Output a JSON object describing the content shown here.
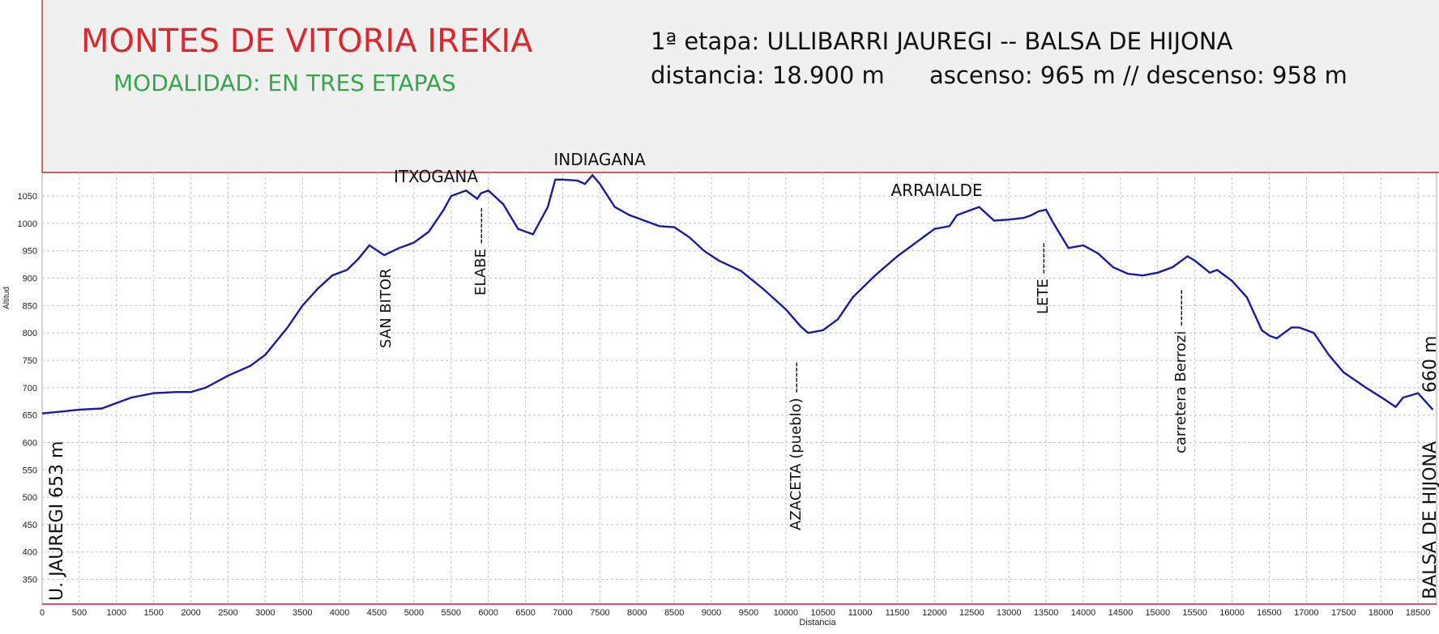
{
  "header": {
    "title": "MONTES DE VITORIA IREKIA",
    "subtitle": "MODALIDAD:  EN TRES ETAPAS",
    "stage": "1ª  etapa: ULLIBARRI JAUREGI -- BALSA DE HIJONA",
    "distance": "distancia: 18.900 m",
    "ascent_descent": "ascenso: 965 m  // descenso: 958 m"
  },
  "chart_data": {
    "type": "area",
    "xlabel": "Distancia",
    "ylabel": "Altitud",
    "xlim": [
      0,
      18750
    ],
    "ylim": [
      305,
      1093
    ],
    "grid": true,
    "x_ticks": [
      0,
      500,
      1000,
      1500,
      2000,
      2500,
      3000,
      3500,
      4000,
      4500,
      5000,
      5500,
      6000,
      6500,
      7000,
      7500,
      8000,
      8500,
      9000,
      9500,
      10000,
      10500,
      11000,
      11500,
      12000,
      12500,
      13000,
      13500,
      14000,
      14500,
      15000,
      15500,
      16000,
      16500,
      17000,
      17500,
      18000,
      18500
    ],
    "y_ticks": [
      350,
      400,
      450,
      500,
      550,
      600,
      650,
      700,
      750,
      800,
      850,
      900,
      950,
      1000,
      1050
    ],
    "series": [
      {
        "color": "#1a1aa8",
        "x": [
          0,
          300,
          500,
          800,
          1000,
          1200,
          1500,
          1800,
          2000,
          2200,
          2500,
          2800,
          3000,
          3300,
          3500,
          3700,
          3900,
          4100,
          4250,
          4400,
          4600,
          4800,
          4900,
          5000,
          5200,
          5400,
          5500,
          5700,
          5850,
          5900,
          6000,
          6200,
          6400,
          6600,
          6800,
          6900,
          7000,
          7200,
          7300,
          7400,
          7500,
          7700,
          7900,
          8100,
          8300,
          8500,
          8700,
          8900,
          9100,
          9400,
          9700,
          10000,
          10200,
          10300,
          10500,
          10700,
          10900,
          11200,
          11500,
          11800,
          12000,
          12200,
          12300,
          12400,
          12500,
          12600,
          12800,
          13000,
          13200,
          13300,
          13400,
          13500,
          13600,
          13800,
          14000,
          14200,
          14400,
          14600,
          14800,
          15000,
          15200,
          15300,
          15400,
          15500,
          15700,
          15800,
          16000,
          16200,
          16400,
          16500,
          16600,
          16800,
          16900,
          17000,
          17100,
          17300,
          17500,
          17800,
          18000,
          18200,
          18300,
          18500,
          18600,
          18700
        ],
        "y": [
          653,
          657,
          660,
          662,
          672,
          682,
          690,
          692,
          692,
          700,
          722,
          740,
          760,
          810,
          850,
          880,
          905,
          915,
          935,
          960,
          942,
          955,
          960,
          965,
          985,
          1025,
          1050,
          1060,
          1045,
          1055,
          1060,
          1035,
          990,
          980,
          1030,
          1080,
          1080,
          1078,
          1072,
          1088,
          1072,
          1030,
          1015,
          1005,
          995,
          993,
          975,
          950,
          932,
          913,
          880,
          843,
          812,
          800,
          805,
          825,
          865,
          905,
          940,
          970,
          990,
          995,
          1015,
          1020,
          1025,
          1030,
          1005,
          1007,
          1010,
          1015,
          1022,
          1025,
          1000,
          955,
          960,
          945,
          920,
          908,
          905,
          910,
          920,
          930,
          940,
          932,
          910,
          915,
          895,
          865,
          805,
          795,
          790,
          810,
          810,
          805,
          800,
          760,
          728,
          700,
          683,
          665,
          682,
          690,
          675,
          660
        ]
      }
    ],
    "annotations": {
      "peaks": [
        "ITXOGANA",
        "INDIAGANA",
        "ARRAIALDE"
      ],
      "waypoints": [
        "SAN BITOR",
        "ELABE",
        "AZACETA (pueblo)",
        "LETE",
        "carretera Berrozi"
      ],
      "start_name": "U. JAUREGI 653 m",
      "end_name": "BALSA DE HIJONA",
      "end_elevation": "660 m"
    }
  }
}
